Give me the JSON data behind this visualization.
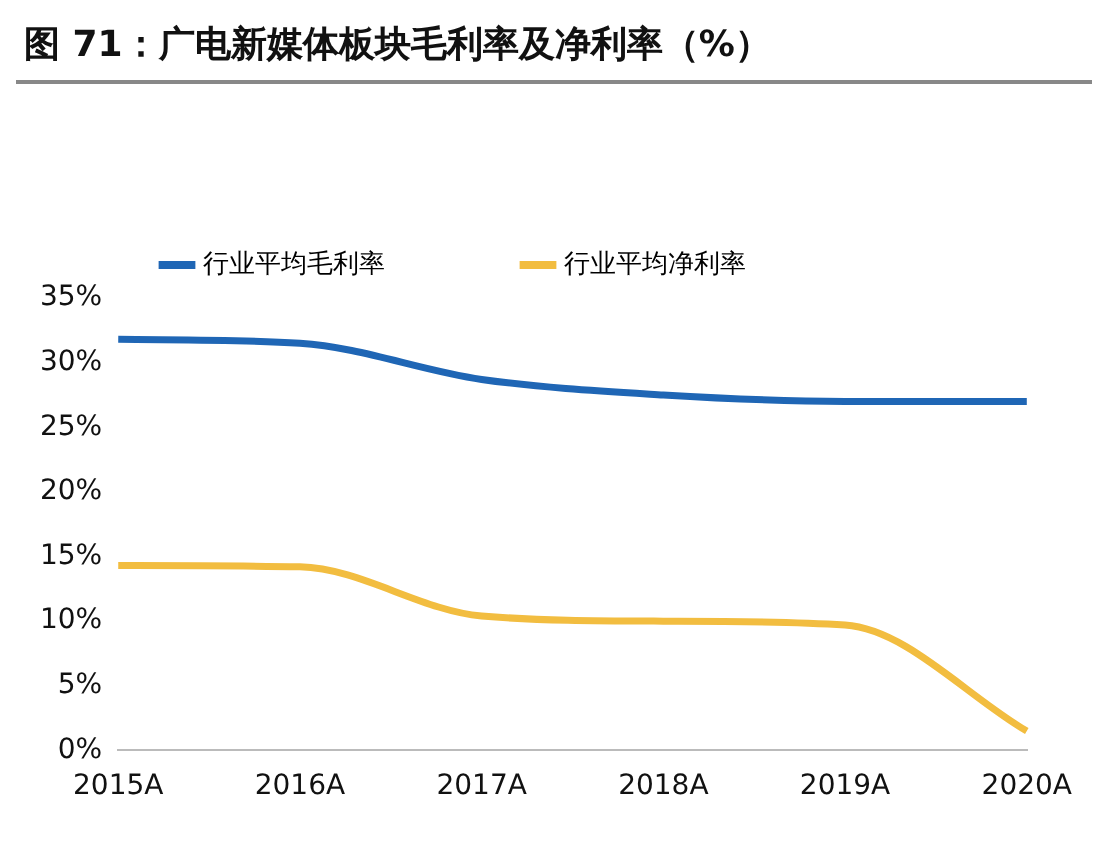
{
  "chart_data": {
    "type": "line",
    "title": "图 71：广电新媒体板块毛利率及净利率（%）",
    "categories": [
      "2015A",
      "2016A",
      "2017A",
      "2018A",
      "2019A",
      "2020A"
    ],
    "series": [
      {
        "name": "行业平均毛利率",
        "color": "#1f66b5",
        "values": [
          31.8,
          31.5,
          28.7,
          27.5,
          27.0,
          27.0
        ]
      },
      {
        "name": "行业平均净利率",
        "color": "#f2bd40",
        "values": [
          14.3,
          14.2,
          10.4,
          10.0,
          9.7,
          1.5
        ]
      }
    ],
    "ylim": [
      0,
      35
    ],
    "yticks": [
      {
        "value": 0,
        "label": "0%"
      },
      {
        "value": 5,
        "label": "5%"
      },
      {
        "value": 10,
        "label": "10%"
      },
      {
        "value": 15,
        "label": "15%"
      },
      {
        "value": 20,
        "label": "20%"
      },
      {
        "value": 25,
        "label": "25%"
      },
      {
        "value": 30,
        "label": "30%"
      },
      {
        "value": 35,
        "label": "35%"
      }
    ],
    "grid": false,
    "legend": "top",
    "marker": "none",
    "line_style": "solid"
  }
}
